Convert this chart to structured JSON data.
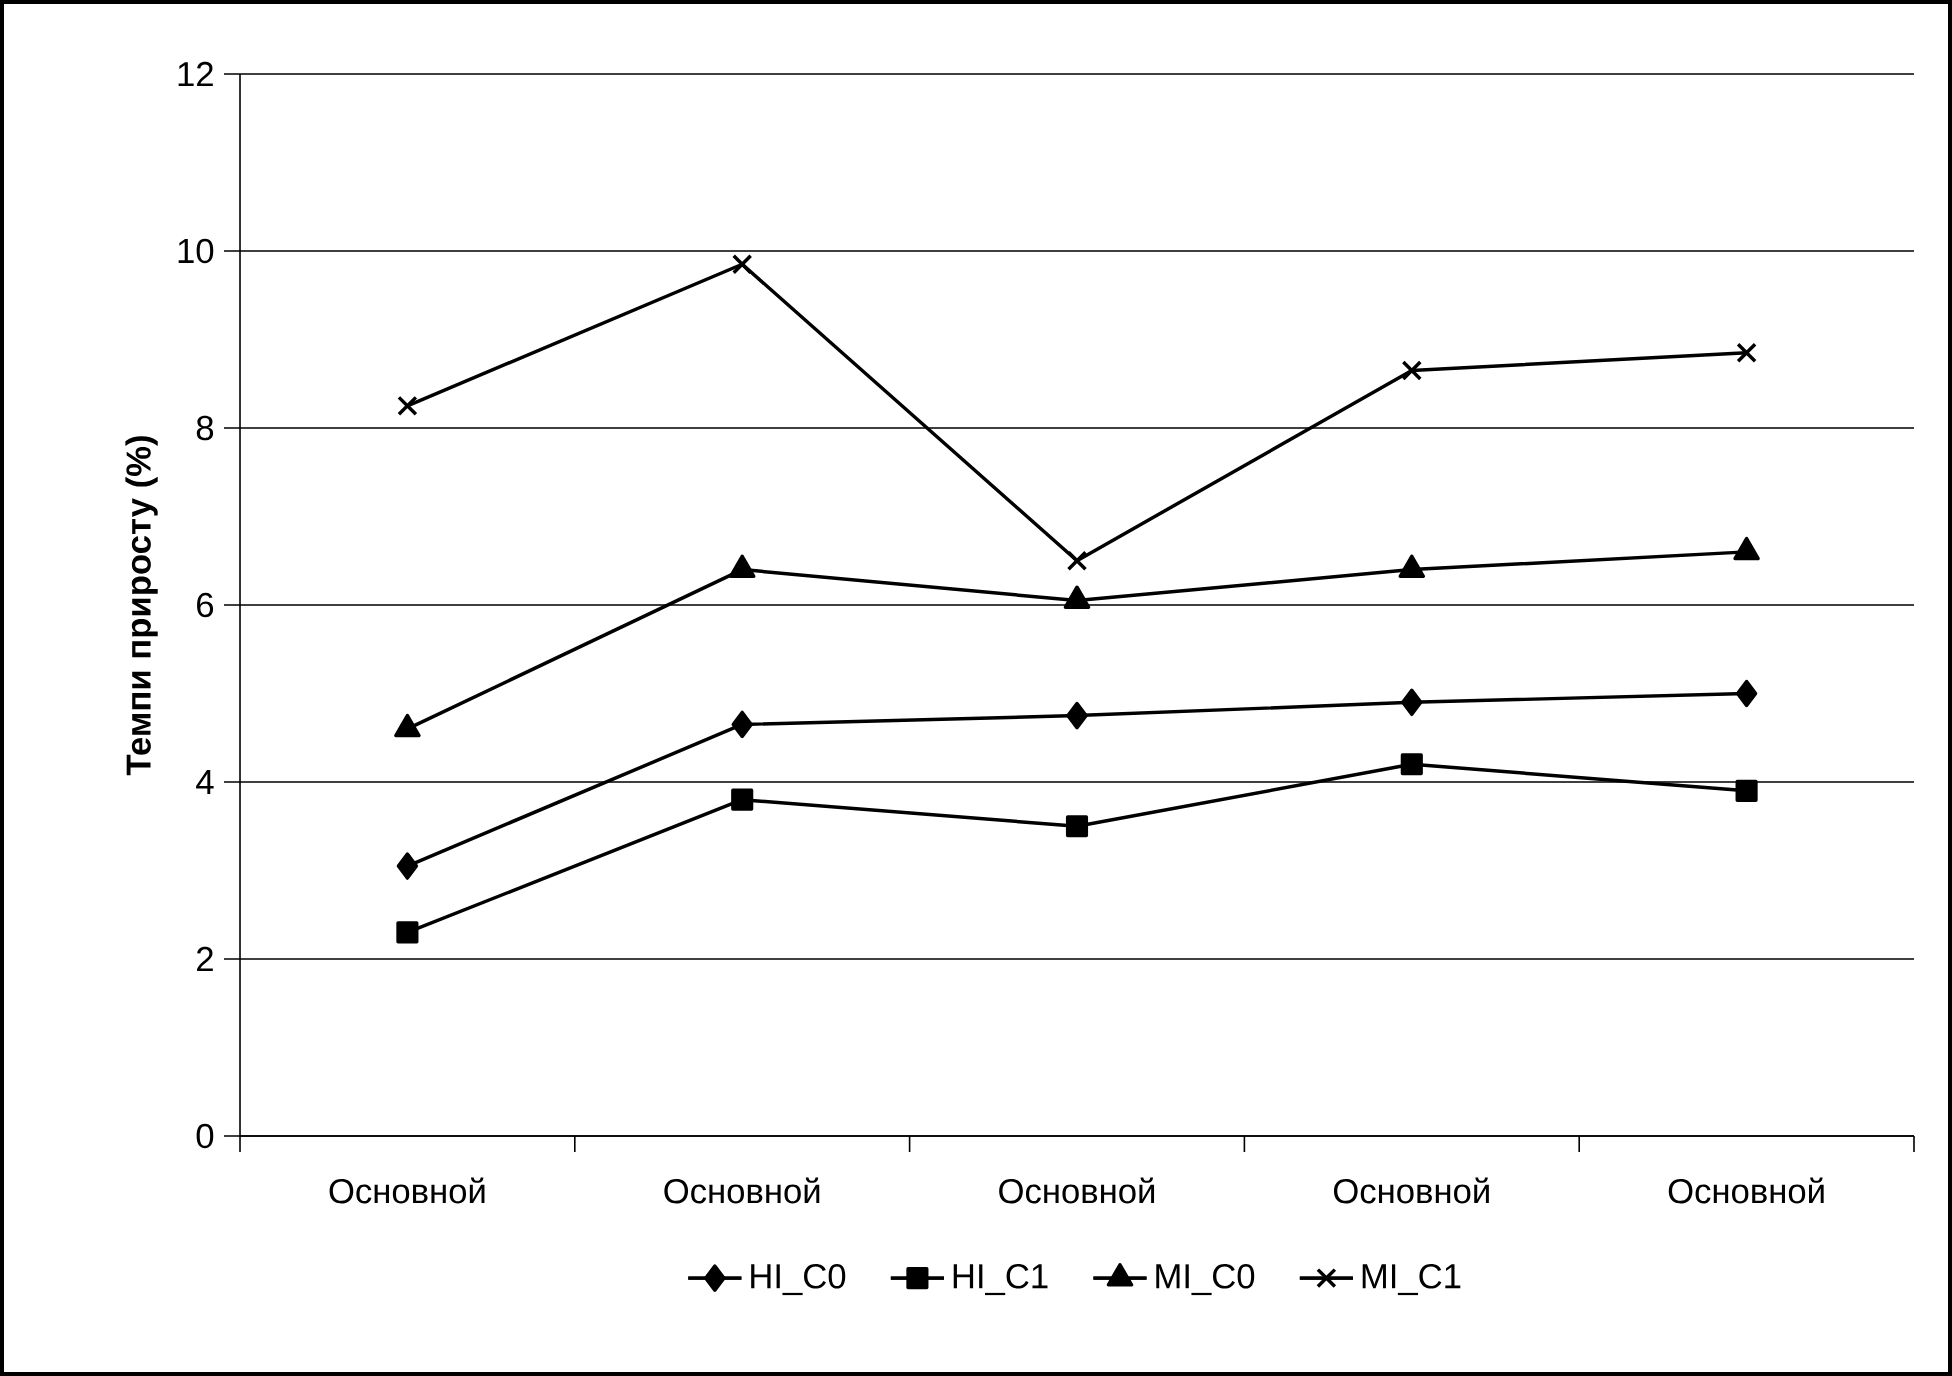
{
  "chart_data": {
    "type": "line",
    "ylabel": "Темпи приросту (%)",
    "categories": [
      "Основной",
      "Основной",
      "Основной",
      "Основной",
      "Основной"
    ],
    "series": [
      {
        "name": "HI_C0",
        "color": "#000000",
        "marker": "diamond",
        "values": [
          3.05,
          4.65,
          4.75,
          4.9,
          5.0
        ]
      },
      {
        "name": "HI_C1",
        "color": "#000000",
        "marker": "square",
        "values": [
          2.3,
          3.8,
          3.5,
          4.2,
          3.9
        ]
      },
      {
        "name": "MI_C0",
        "color": "#000000",
        "marker": "triangle",
        "values": [
          4.6,
          6.4,
          6.05,
          6.4,
          6.6
        ]
      },
      {
        "name": "MI_C1",
        "color": "#000000",
        "marker": "cross",
        "values": [
          8.25,
          9.85,
          6.5,
          8.65,
          8.85
        ]
      }
    ],
    "ylim": [
      0,
      12
    ],
    "yticks": [
      0,
      2,
      4,
      6,
      8,
      10,
      12
    ],
    "grid": "y",
    "legend": "bottom",
    "line_style": "solid"
  }
}
